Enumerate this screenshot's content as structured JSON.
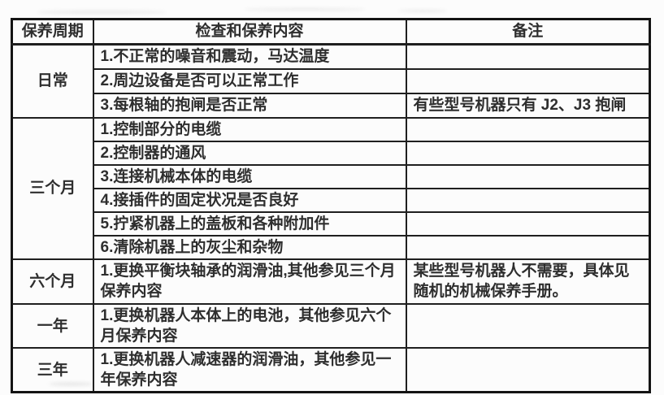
{
  "colors": {
    "background": "#fcfcfc",
    "border": "#1f1f1f",
    "text": "#2e2e2e"
  },
  "table": {
    "headers": [
      "保养周期",
      "检查和保养内容",
      "备注"
    ],
    "sections": [
      {
        "period": "日常",
        "rows": [
          {
            "content": "1.不正常的噪音和震动，马达温度",
            "remark": ""
          },
          {
            "content": "2.周边设备是否可以正常工作",
            "remark": ""
          },
          {
            "content": "3.每根轴的抱闸是否正常",
            "remark": "有些型号机器只有 J2、J3 抱闸"
          }
        ]
      },
      {
        "period": "三个月",
        "rows": [
          {
            "content": "1.控制部分的电缆",
            "remark": ""
          },
          {
            "content": "2.控制器的通风",
            "remark": ""
          },
          {
            "content": "3.连接机械本体的电缆",
            "remark": ""
          },
          {
            "content": "4.接插件的固定状况是否良好",
            "remark": ""
          },
          {
            "content": "5.拧紧机器上的盖板和各种附加件",
            "remark": ""
          },
          {
            "content": "6.清除机器上的灰尘和杂物",
            "remark": ""
          }
        ]
      },
      {
        "period": "六个月",
        "rows": [
          {
            "content": "1.更换平衡块轴承的润滑油,其他参见三个月保养内容",
            "remark": "某些型号机器人不需要，具体见随机的机械保养手册。"
          }
        ]
      },
      {
        "period": "一年",
        "rows": [
          {
            "content": "1.更换机器人本体上的电池，其他参见六个月保养内容",
            "remark": ""
          }
        ]
      },
      {
        "period": "三年",
        "rows": [
          {
            "content": "1.更换机器人减速器的润滑油，其他参见一年保养内容",
            "remark": ""
          }
        ]
      }
    ]
  }
}
